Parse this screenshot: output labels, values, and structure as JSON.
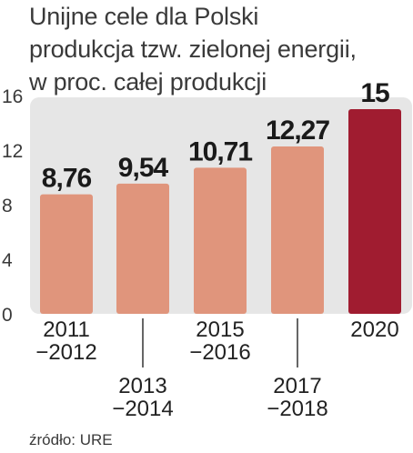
{
  "title_lines": [
    "Unijne cele dla Polski",
    "produkcja tzw. zielonej energii,",
    "w proc. całej produkcji"
  ],
  "source": "źródło: URE",
  "chart_data": {
    "type": "bar",
    "title": "Unijne cele dla Polski produkcja tzw. zielonej energii, w proc. całej produkcji",
    "xlabel": "",
    "ylabel": "",
    "categories": [
      [
        "2011",
        "−2012"
      ],
      [
        "2013",
        "−2014"
      ],
      [
        "2015",
        "−2016"
      ],
      [
        "2017",
        "−2018"
      ],
      [
        "2020"
      ]
    ],
    "values": [
      8.76,
      9.54,
      10.71,
      12.27,
      15
    ],
    "value_labels": [
      "8,76",
      "9,54",
      "10,71",
      "12,27",
      "15"
    ],
    "ylim": [
      0,
      16
    ],
    "yticks": [
      0,
      4,
      8,
      12,
      16
    ],
    "grid": false,
    "colors": {
      "bar": "#e0957c",
      "highlight_bar": "#a01c30",
      "background_panel": "#e6e6e6",
      "leader_line": "#333333"
    },
    "highlight_index": 4
  }
}
